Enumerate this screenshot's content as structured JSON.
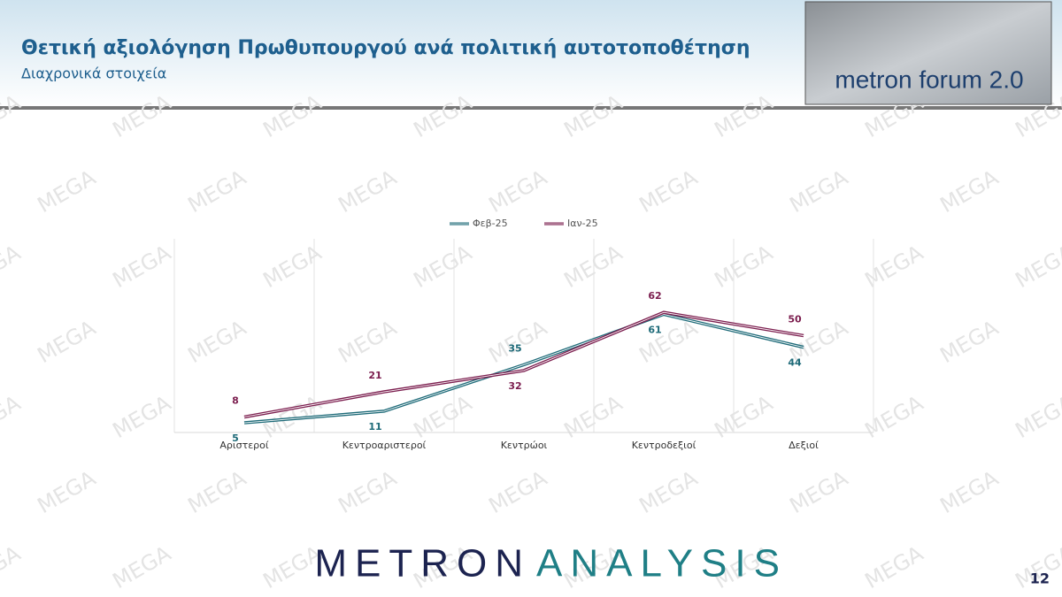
{
  "header": {
    "title": "Θετική αξιολόγηση Πρωθυπουργού ανά πολιτική αυτοτοποθέτηση",
    "subtitle": "Διαχρονικά στοιχεία",
    "logo": "metron forum 2.0"
  },
  "watermark": "MEGA",
  "chart_data": {
    "type": "line",
    "categories": [
      "Αριστεροί",
      "Κεντροαριστεροί",
      "Κεντρώοι",
      "Κεντροδεξιοί",
      "Δεξιοί"
    ],
    "series": [
      {
        "name": "Φεβ-25",
        "color": "#1d6a78",
        "values": [
          5,
          11,
          35,
          61,
          44
        ]
      },
      {
        "name": "Ιαν-25",
        "color": "#7b1d4e",
        "values": [
          8,
          21,
          32,
          62,
          50
        ]
      }
    ],
    "ylim": [
      0,
      100
    ],
    "legend": "top",
    "grid": true
  },
  "footer": {
    "brand_left": "METRON",
    "brand_right": "ANALYSIS",
    "page": "12"
  }
}
